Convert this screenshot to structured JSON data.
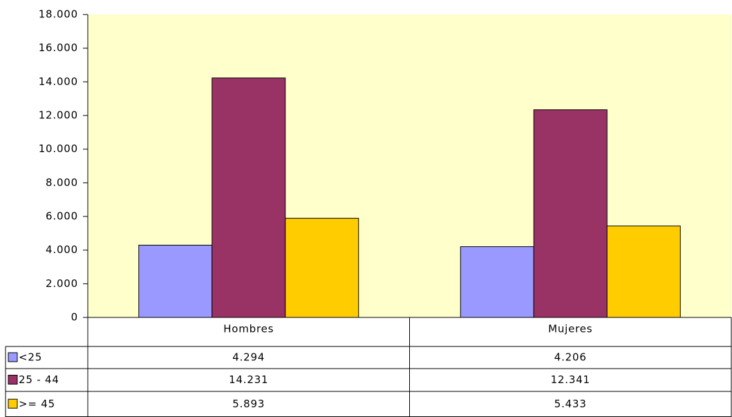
{
  "chart_data": {
    "type": "bar",
    "categories": [
      "Hombres",
      "Mujeres"
    ],
    "series": [
      {
        "name": "<25",
        "color": "#9999ff",
        "values": [
          4294,
          4206
        ],
        "value_labels": [
          "4.294",
          "4.206"
        ]
      },
      {
        "name": "25 - 44",
        "color": "#993366",
        "values": [
          14231,
          12341
        ],
        "value_labels": [
          "14.231",
          "12.341"
        ]
      },
      {
        "name": ">= 45",
        "color": "#ffcc00",
        "values": [
          5893,
          5433
        ],
        "value_labels": [
          "5.893",
          "5.433"
        ]
      }
    ],
    "ylim": [
      0,
      18000
    ],
    "yticks": [
      0,
      {
        "value": 2000,
        "label": "2.000"
      },
      {
        "value": 4000,
        "label": "4.000"
      },
      {
        "value": 6000,
        "label": "6.000"
      },
      {
        "value": 8000,
        "label": "8.000"
      },
      {
        "value": 10000,
        "label": "10.000"
      },
      {
        "value": 12000,
        "label": "12.000"
      },
      {
        "value": 14000,
        "label": "14.000"
      },
      {
        "value": 16000,
        "label": "16.000"
      },
      {
        "value": 18000,
        "label": "18.000"
      }
    ],
    "plot_background": "#ffffcc"
  }
}
